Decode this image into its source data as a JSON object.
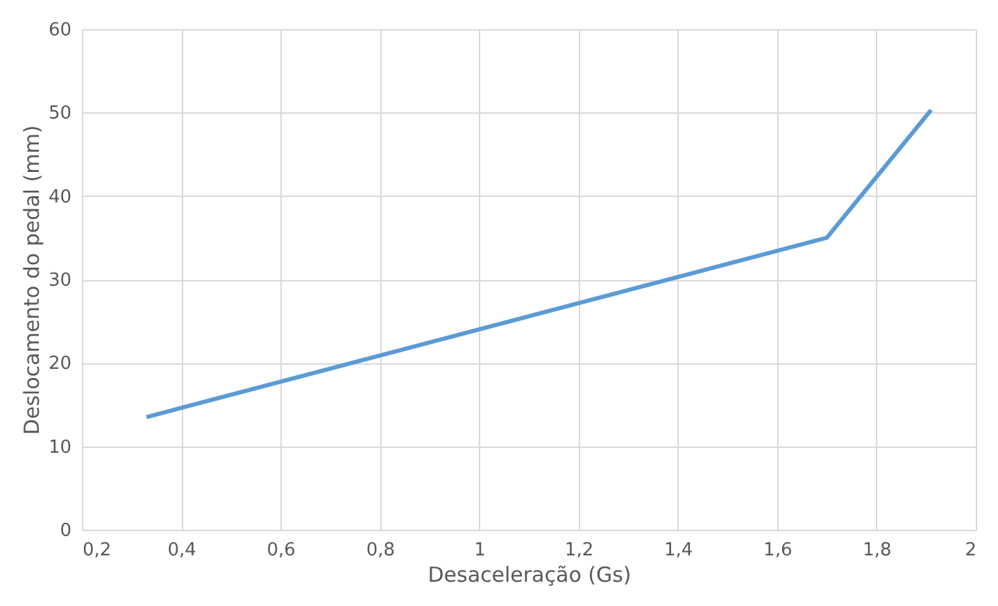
{
  "chart_data": {
    "type": "line",
    "xlabel": "Desaceleração (Gs)",
    "ylabel": "Deslocamento do pedal (mm)",
    "x": [
      0.33,
      1.7,
      1.91
    ],
    "series": [
      {
        "color": "#5b9bd5",
        "values": [
          13.5,
          35.0,
          50.3
        ]
      }
    ],
    "xlim": [
      0.2,
      2
    ],
    "xticks": [
      {
        "value": 0.2,
        "label": "0,2"
      },
      {
        "value": 0.4,
        "label": "0,4"
      },
      {
        "value": 0.6,
        "label": "0,6"
      },
      {
        "value": 0.8,
        "label": "0,8"
      },
      1,
      {
        "value": 1.2,
        "label": "1,2"
      },
      {
        "value": 1.4,
        "label": "1,4"
      },
      {
        "value": 1.6,
        "label": "1,6"
      },
      {
        "value": 1.8,
        "label": "1,8"
      },
      2
    ],
    "ylim": [
      0,
      60
    ],
    "yticks": [
      0,
      10,
      20,
      30,
      40,
      50,
      60
    ],
    "grid": true,
    "marker": "none",
    "line_style": "solid"
  }
}
